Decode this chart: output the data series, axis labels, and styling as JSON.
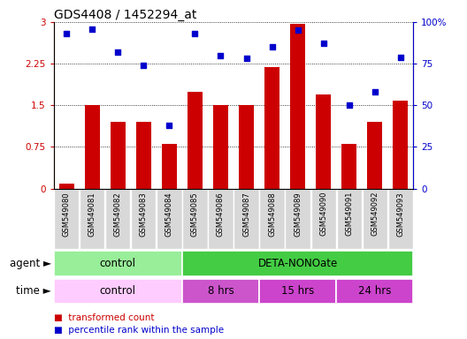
{
  "title": "GDS4408 / 1452294_at",
  "samples": [
    "GSM549080",
    "GSM549081",
    "GSM549082",
    "GSM549083",
    "GSM549084",
    "GSM549085",
    "GSM549086",
    "GSM549087",
    "GSM549088",
    "GSM549089",
    "GSM549090",
    "GSM549091",
    "GSM549092",
    "GSM549093"
  ],
  "transformed_count": [
    0.08,
    1.5,
    1.2,
    1.2,
    0.8,
    1.75,
    1.5,
    1.5,
    2.18,
    2.97,
    1.7,
    0.8,
    1.2,
    1.58
  ],
  "percentile_rank": [
    93,
    96,
    82,
    74,
    38,
    93,
    80,
    78,
    85,
    95,
    87,
    50,
    58,
    79
  ],
  "bar_color": "#cc0000",
  "dot_color": "#0000cc",
  "ylim_left": [
    0,
    3
  ],
  "ylim_right": [
    0,
    100
  ],
  "yticks_left": [
    0,
    0.75,
    1.5,
    2.25,
    3
  ],
  "yticks_right": [
    0,
    25,
    50,
    75,
    100
  ],
  "ytick_labels_left": [
    "0",
    "0.75",
    "1.5",
    "2.25",
    "3"
  ],
  "ytick_labels_right": [
    "0",
    "25",
    "50",
    "75",
    "100%"
  ],
  "agent_groups": [
    {
      "label": "control",
      "start": 0,
      "end": 4,
      "color": "#99ee99"
    },
    {
      "label": "DETA-NONOate",
      "start": 5,
      "end": 13,
      "color": "#44cc44"
    }
  ],
  "time_groups": [
    {
      "label": "control",
      "start": 0,
      "end": 4,
      "color": "#ffccff"
    },
    {
      "label": "8 hrs",
      "start": 5,
      "end": 7,
      "color": "#cc55cc"
    },
    {
      "label": "15 hrs",
      "start": 8,
      "end": 10,
      "color": "#cc44cc"
    },
    {
      "label": "24 hrs",
      "start": 11,
      "end": 13,
      "color": "#cc44cc"
    }
  ],
  "background_color": "#ffffff",
  "title_fontsize": 10,
  "tick_fontsize": 7.5,
  "sample_fontsize": 6.0,
  "label_fontsize": 8.5,
  "legend_fontsize": 7.5
}
